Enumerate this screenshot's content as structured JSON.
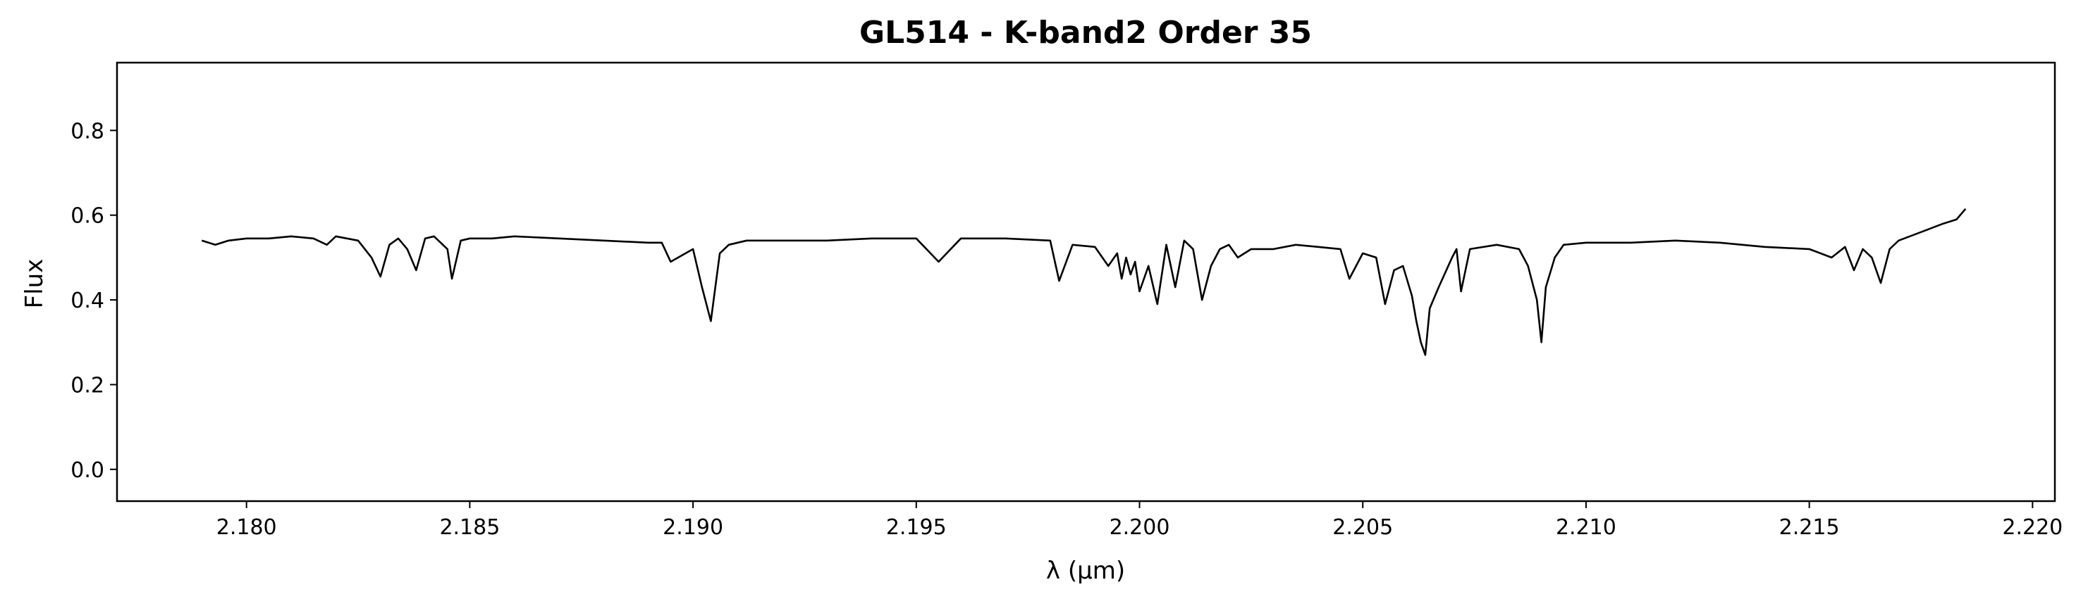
{
  "chart_data": {
    "type": "line",
    "title": "GL514 - K-band2 Order 35",
    "xlabel": "λ (μm)",
    "ylabel": "Flux",
    "xlim": [
      2.1771,
      2.2205
    ],
    "ylim": [
      -0.075,
      0.96
    ],
    "x_ticks": [
      2.18,
      2.185,
      2.19,
      2.195,
      2.2,
      2.205,
      2.21,
      2.215,
      2.22
    ],
    "x_tick_labels": [
      "2.180",
      "2.185",
      "2.190",
      "2.195",
      "2.200",
      "2.205",
      "2.210",
      "2.215",
      "2.220"
    ],
    "y_ticks": [
      0.0,
      0.2,
      0.4,
      0.6,
      0.8
    ],
    "y_tick_labels": [
      "0.0",
      "0.2",
      "0.4",
      "0.6",
      "0.8"
    ],
    "grid": false,
    "line_color": "#000000",
    "series": [
      {
        "x": [
          2.179,
          2.1793,
          2.1796,
          2.18,
          2.1805,
          2.181,
          2.1815,
          2.1818,
          2.182,
          2.1825,
          2.1828,
          2.183,
          2.1832,
          2.1834,
          2.1836,
          2.1838,
          2.184,
          2.1842,
          2.1845,
          2.1846,
          2.1848,
          2.185,
          2.1855,
          2.186,
          2.187,
          2.188,
          2.189,
          2.1893,
          2.1895,
          2.19,
          2.1902,
          2.1904,
          2.1906,
          2.1908,
          2.1912,
          2.192,
          2.193,
          2.194,
          2.195,
          2.1955,
          2.196,
          2.197,
          2.198,
          2.1982,
          2.1985,
          2.199,
          2.1993,
          2.1995,
          2.1996,
          2.1997,
          2.1998,
          2.1999,
          2.2,
          2.2002,
          2.2004,
          2.2006,
          2.2008,
          2.201,
          2.2012,
          2.2014,
          2.2016,
          2.2018,
          2.202,
          2.2022,
          2.2025,
          2.203,
          2.2035,
          2.204,
          2.2045,
          2.2047,
          2.205,
          2.2053,
          2.2055,
          2.2057,
          2.2059,
          2.2061,
          2.2062,
          2.2063,
          2.2064,
          2.2065,
          2.2067,
          2.207,
          2.2071,
          2.2072,
          2.2074,
          2.208,
          2.2085,
          2.2087,
          2.2089,
          2.209,
          2.2091,
          2.2093,
          2.2095,
          2.21,
          2.211,
          2.212,
          2.213,
          2.214,
          2.215,
          2.2155,
          2.2158,
          2.216,
          2.2162,
          2.2164,
          2.2166,
          2.2168,
          2.217,
          2.2175,
          2.218,
          2.2183,
          2.2185
        ],
        "y": [
          0.54,
          0.53,
          0.54,
          0.545,
          0.545,
          0.55,
          0.545,
          0.53,
          0.55,
          0.54,
          0.5,
          0.455,
          0.53,
          0.545,
          0.52,
          0.47,
          0.545,
          0.55,
          0.52,
          0.45,
          0.54,
          0.545,
          0.545,
          0.55,
          0.545,
          0.54,
          0.535,
          0.535,
          0.49,
          0.52,
          0.43,
          0.35,
          0.51,
          0.53,
          0.54,
          0.54,
          0.54,
          0.545,
          0.545,
          0.49,
          0.545,
          0.545,
          0.54,
          0.445,
          0.53,
          0.525,
          0.48,
          0.51,
          0.45,
          0.5,
          0.46,
          0.49,
          0.42,
          0.48,
          0.39,
          0.53,
          0.43,
          0.54,
          0.52,
          0.4,
          0.48,
          0.52,
          0.53,
          0.5,
          0.52,
          0.52,
          0.53,
          0.525,
          0.52,
          0.45,
          0.51,
          0.5,
          0.39,
          0.47,
          0.48,
          0.41,
          0.35,
          0.3,
          0.27,
          0.38,
          0.43,
          0.5,
          0.52,
          0.42,
          0.52,
          0.53,
          0.52,
          0.48,
          0.4,
          0.3,
          0.43,
          0.5,
          0.53,
          0.535,
          0.535,
          0.54,
          0.535,
          0.525,
          0.52,
          0.5,
          0.525,
          0.47,
          0.52,
          0.5,
          0.44,
          0.52,
          0.54,
          0.56,
          0.58,
          0.59,
          0.615
        ]
      }
    ]
  }
}
